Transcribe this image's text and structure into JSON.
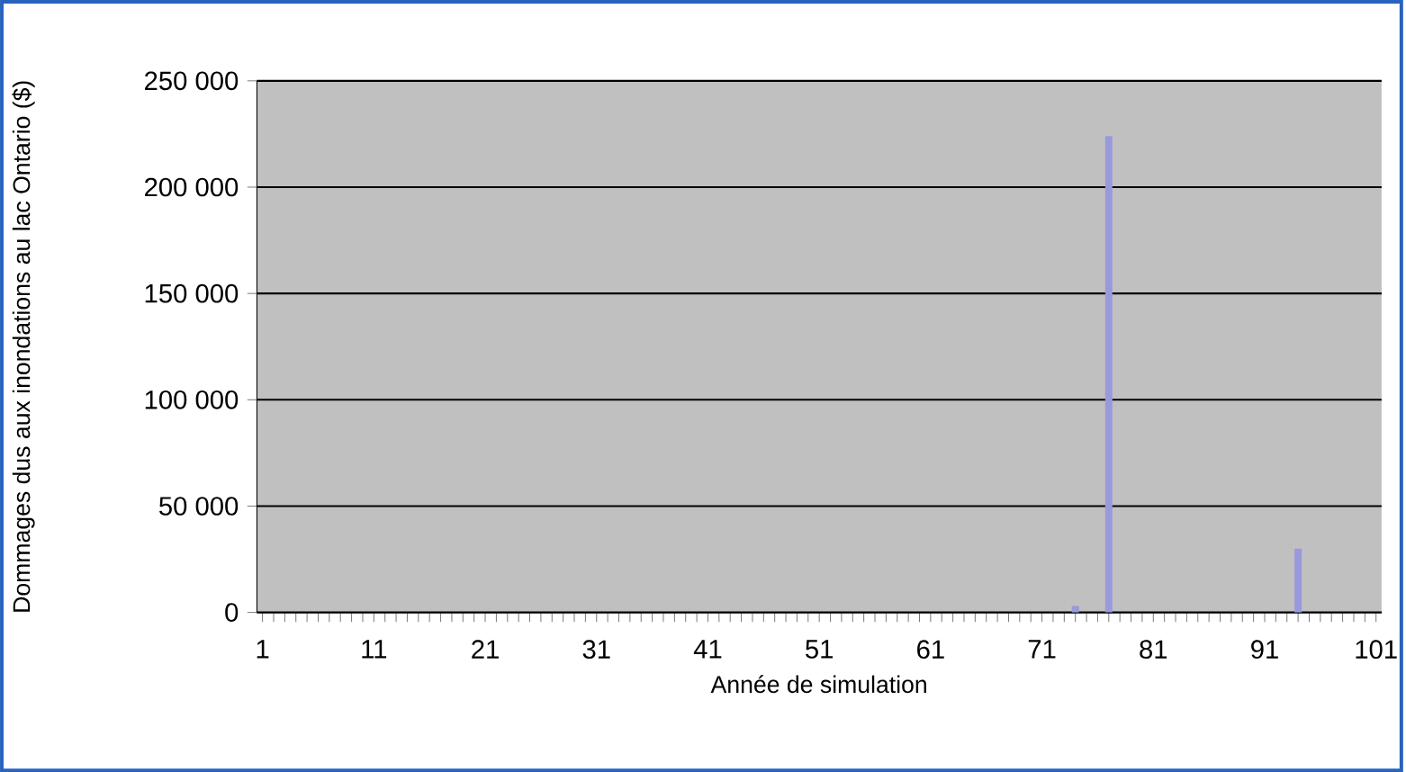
{
  "chart_data": {
    "type": "bar",
    "xlabel": "Année de simulation",
    "ylabel": "Dommages dus aux inondations au lac Ontario ($)",
    "categories": [
      "1",
      null,
      null,
      null,
      null,
      null,
      null,
      null,
      null,
      null,
      "11",
      null,
      null,
      null,
      null,
      null,
      null,
      null,
      null,
      null,
      "21",
      null,
      null,
      null,
      null,
      null,
      null,
      null,
      null,
      null,
      "31",
      null,
      null,
      null,
      null,
      null,
      null,
      null,
      null,
      null,
      "41",
      null,
      null,
      null,
      null,
      null,
      null,
      null,
      null,
      null,
      "51",
      null,
      null,
      null,
      null,
      null,
      null,
      null,
      null,
      null,
      "61",
      null,
      null,
      null,
      null,
      null,
      null,
      null,
      null,
      null,
      "71",
      null,
      null,
      null,
      null,
      null,
      null,
      null,
      null,
      null,
      "81",
      null,
      null,
      null,
      null,
      null,
      null,
      null,
      null,
      null,
      "91",
      null,
      null,
      null,
      null,
      null,
      null,
      null,
      null,
      null,
      "101"
    ],
    "values": [
      0,
      0,
      0,
      0,
      0,
      0,
      0,
      0,
      0,
      0,
      0,
      0,
      0,
      0,
      0,
      0,
      0,
      0,
      0,
      0,
      0,
      0,
      0,
      0,
      0,
      0,
      0,
      0,
      0,
      0,
      0,
      0,
      0,
      0,
      0,
      0,
      0,
      0,
      0,
      0,
      0,
      0,
      0,
      0,
      0,
      0,
      0,
      0,
      0,
      0,
      0,
      0,
      0,
      0,
      0,
      0,
      0,
      0,
      0,
      0,
      0,
      0,
      0,
      0,
      0,
      0,
      0,
      0,
      0,
      0,
      0,
      0,
      0,
      3000,
      0,
      0,
      224000,
      0,
      0,
      0,
      0,
      0,
      0,
      0,
      0,
      0,
      0,
      0,
      0,
      0,
      0,
      0,
      0,
      30000,
      0,
      0,
      0,
      0,
      0,
      0,
      0
    ],
    "color": "#9999dd",
    "ylim": [
      0,
      250000
    ],
    "yticks": [
      {
        "value": 0,
        "label": "0"
      },
      {
        "value": 50000,
        "label": "50 000"
      },
      {
        "value": 100000,
        "label": "100 000"
      },
      {
        "value": 150000,
        "label": "150 000"
      },
      {
        "value": 200000,
        "label": "200 000"
      },
      {
        "value": 250000,
        "label": "250 000"
      }
    ],
    "grid": "y"
  }
}
